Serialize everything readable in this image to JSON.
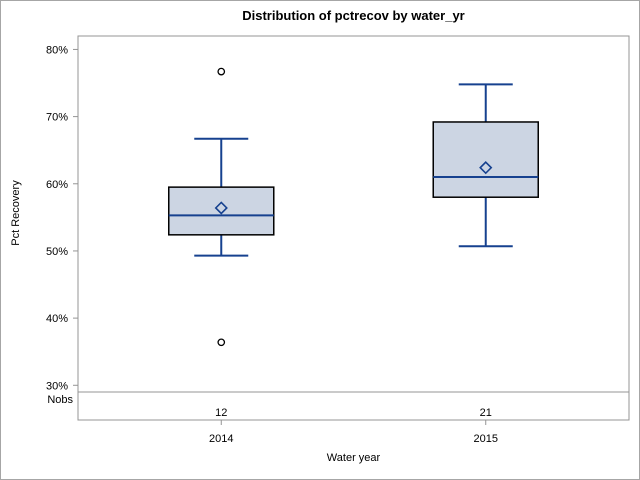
{
  "title": "Distribution of pctrecov by water_yr",
  "nobs_row": {
    "label": "Nobs",
    "values": [
      "12",
      "21"
    ]
  },
  "colors": {
    "background": "#ffffff",
    "border_gray": "#a6a6a6",
    "axis_gray": "#949494",
    "text": "#000000",
    "box_fill": "#ccd5e3",
    "box_outline": "#000000",
    "line_blue": "#16418f",
    "outlier_black": "#000000"
  },
  "chart_data": {
    "type": "boxplot",
    "title": "Distribution of pctrecov by water_yr",
    "xlabel": "Water year",
    "ylabel": "Pct Recovery",
    "ylim": [
      29,
      82
    ],
    "y_ticks": [
      80,
      70,
      60,
      50,
      40,
      30
    ],
    "y_tick_labels": [
      "80%",
      "70%",
      "60%",
      "50%",
      "40%",
      "30%"
    ],
    "grid": false,
    "legend": "none",
    "categories": [
      "2014",
      "2015"
    ],
    "series": [
      {
        "category": "2014",
        "nobs": 12,
        "whisker_low": 49.3,
        "q1": 52.4,
        "median": 55.3,
        "q3": 59.5,
        "whisker_high": 66.7,
        "mean": 56.4,
        "outliers": [
          76.7,
          36.4
        ]
      },
      {
        "category": "2015",
        "nobs": 21,
        "whisker_low": 50.7,
        "q1": 58.0,
        "median": 61.0,
        "q3": 69.2,
        "whisker_high": 74.8,
        "mean": 62.4,
        "outliers": []
      }
    ]
  }
}
